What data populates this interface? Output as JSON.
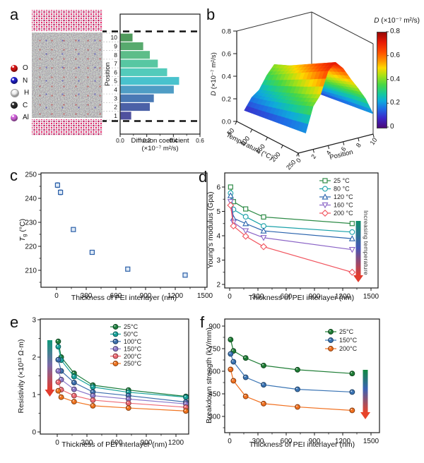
{
  "figure": {
    "panel_labels": {
      "a": "a",
      "b": "b",
      "c": "c",
      "d": "d",
      "e": "e",
      "f": "f"
    }
  },
  "panel_a": {
    "atom_legend": [
      {
        "element": "O",
        "color": "#d31414"
      },
      {
        "element": "N",
        "color": "#2020c8"
      },
      {
        "element": "H",
        "color": "#f2f2f2"
      },
      {
        "element": "C",
        "color": "#2e2e2e"
      },
      {
        "element": "Al",
        "color": "#cf62d8"
      }
    ]
  },
  "chart_data": [
    {
      "panel": "a",
      "type": "bar",
      "orientation": "horizontal",
      "xlabel": "Diffusion coefficient",
      "xlabel_units": "(×10⁻⁷ m²/s)",
      "ylabel": "Position",
      "categories": [
        1,
        2,
        3,
        4,
        5,
        6,
        7,
        8,
        9,
        10
      ],
      "values": [
        0.08,
        0.22,
        0.25,
        0.4,
        0.44,
        0.35,
        0.28,
        0.22,
        0.17,
        0.09
      ],
      "bar_colors": [
        "#50519e",
        "#4b61a7",
        "#4a79b5",
        "#4f9dc5",
        "#49c2cd",
        "#53cbbb",
        "#57c7a2",
        "#5dbd89",
        "#58aa6e",
        "#4f9a5c"
      ],
      "xlim": [
        0,
        0.6
      ],
      "x_ticks": [
        0,
        0.2,
        0.4,
        0.6
      ],
      "x_minor_ticks": [
        0.1,
        0.3,
        0.5
      ]
    },
    {
      "panel": "b",
      "type": "surface",
      "zlabel_d": "D",
      "zlabel_units": " (×10⁻⁷ m²/s)",
      "xlabel": "Temperature (°C)",
      "ylabel": "Position",
      "colorbar_title_d": "D",
      "colorbar_title_units": " (×10⁻⁷ m²/s)",
      "colorbar_ticks": [
        0,
        0.2,
        0.4,
        0.6,
        0.8
      ],
      "x_ticks": [
        50,
        100,
        150,
        200,
        250
      ],
      "y_ticks": [
        0,
        2,
        4,
        6,
        8,
        10
      ],
      "z_ticks": [
        0,
        0.2,
        0.4,
        0.6,
        0.8
      ],
      "zlim": [
        0,
        0.8
      ],
      "temperatures": [
        50,
        100,
        150,
        200,
        250
      ],
      "positions": [
        1,
        2,
        3,
        4,
        5,
        6,
        7,
        8,
        9,
        10
      ],
      "surface": [
        [
          0.08,
          0.18,
          0.23,
          0.34,
          0.42,
          0.38,
          0.3,
          0.24,
          0.18,
          0.1
        ],
        [
          0.1,
          0.22,
          0.28,
          0.42,
          0.48,
          0.44,
          0.36,
          0.29,
          0.22,
          0.12
        ],
        [
          0.12,
          0.27,
          0.34,
          0.5,
          0.56,
          0.51,
          0.42,
          0.34,
          0.26,
          0.14
        ],
        [
          0.14,
          0.32,
          0.4,
          0.58,
          0.64,
          0.58,
          0.48,
          0.39,
          0.3,
          0.16
        ],
        [
          0.16,
          0.38,
          0.47,
          0.66,
          0.72,
          0.65,
          0.54,
          0.44,
          0.33,
          0.18
        ]
      ]
    },
    {
      "panel": "c",
      "type": "scatter",
      "xlabel": "Thickness of PEI interlayer (nm)",
      "ylabel_prefix": "T",
      "ylabel_sub": "g",
      "ylabel_suffix": " (°C)",
      "x": [
        10,
        40,
        170,
        360,
        720,
        1300
      ],
      "y": [
        245.5,
        242.5,
        227.0,
        217.5,
        210.5,
        208.0
      ],
      "y_error": [
        1.0,
        1.0,
        0.8,
        0.8,
        0.7,
        0.6
      ],
      "marker": "square",
      "marker_fill": "open",
      "color": "#2b5fa8",
      "marker_face": "#dfeaf6",
      "x_ticks": [
        0,
        300,
        600,
        900,
        1200,
        1500
      ],
      "y_ticks": [
        210,
        220,
        230,
        240,
        250
      ]
    },
    {
      "panel": "d",
      "type": "line",
      "xlabel": "Thickness of PEI interlayer (nm)",
      "ylabel": "Young's modulus (Gpa)",
      "annotation": "Increasing temperature",
      "x": [
        10,
        40,
        170,
        360,
        1300
      ],
      "series": [
        {
          "name": "25 °C",
          "marker": "square",
          "color": "#2e8b47",
          "values": [
            6.0,
            5.4,
            5.1,
            4.77,
            4.5
          ]
        },
        {
          "name": "80 °C",
          "marker": "circle",
          "color": "#17a0a8",
          "values": [
            5.75,
            5.08,
            4.78,
            4.4,
            4.15
          ]
        },
        {
          "name": "120 °C",
          "marker": "triangle-up",
          "color": "#2a63ad",
          "values": [
            5.65,
            4.72,
            4.5,
            4.2,
            3.88
          ]
        },
        {
          "name": "160 °C",
          "marker": "triangle-down",
          "color": "#8a63c6",
          "values": [
            5.4,
            4.55,
            4.2,
            3.92,
            3.43
          ]
        },
        {
          "name": "200 °C",
          "marker": "diamond",
          "color": "#f1545e",
          "values": [
            5.25,
            4.4,
            3.98,
            3.55,
            2.5
          ]
        }
      ],
      "marker_fill": "open",
      "x_ticks": [
        0,
        300,
        600,
        900,
        1200,
        1500
      ],
      "y_ticks": [
        2,
        3,
        4,
        5,
        6
      ]
    },
    {
      "panel": "e",
      "type": "line",
      "xlabel": "Thickness of PEI interlayer (nm)",
      "ylabel": "Resistivity (×10¹³ Ω·m)",
      "x": [
        10,
        40,
        170,
        360,
        720,
        1300
      ],
      "series": [
        {
          "name": "25°C",
          "marker": "circle",
          "color": "#1e8040",
          "values": [
            2.42,
            2.0,
            1.57,
            1.25,
            1.12,
            0.95
          ]
        },
        {
          "name": "50°C",
          "marker": "circle",
          "color": "#18a39b",
          "values": [
            2.28,
            1.92,
            1.48,
            1.2,
            1.06,
            0.93
          ]
        },
        {
          "name": "100°C",
          "marker": "circle",
          "color": "#3c6fae",
          "values": [
            1.93,
            1.63,
            1.32,
            1.07,
            0.97,
            0.8
          ]
        },
        {
          "name": "150°C",
          "marker": "circle",
          "color": "#8c79cb",
          "values": [
            1.63,
            1.4,
            1.14,
            0.97,
            0.88,
            0.75
          ]
        },
        {
          "name": "200°C",
          "marker": "circle",
          "color": "#ef6a74",
          "values": [
            1.33,
            1.13,
            0.97,
            0.85,
            0.77,
            0.66
          ]
        },
        {
          "name": "250°C",
          "marker": "circle",
          "color": "#f1741f",
          "values": [
            1.1,
            0.93,
            0.81,
            0.7,
            0.64,
            0.56
          ]
        }
      ],
      "marker_fill": "solid",
      "x_ticks": [
        0,
        300,
        600,
        900,
        1200
      ],
      "y_ticks": [
        0,
        1,
        2,
        3
      ]
    },
    {
      "panel": "f",
      "type": "line",
      "xlabel": "Thickness of PEI interlayer (nm)",
      "ylabel": "Breakdown strength (kV/mm)",
      "x": [
        10,
        40,
        170,
        360,
        720,
        1300
      ],
      "series": [
        {
          "name": "25°C",
          "marker": "circle",
          "color": "#1e7d35",
          "values": [
            810,
            735,
            688,
            638,
            610,
            585
          ]
        },
        {
          "name": "150°C",
          "marker": "circle",
          "color": "#3a74b4",
          "values": [
            715,
            663,
            560,
            510,
            480,
            462
          ]
        },
        {
          "name": "200°C",
          "marker": "circle",
          "color": "#f1701f",
          "values": [
            612,
            537,
            433,
            385,
            363,
            340
          ]
        }
      ],
      "marker_fill": "solid",
      "x_ticks": [
        0,
        300,
        600,
        900,
        1200,
        1500
      ],
      "y_ticks": [
        300,
        450,
        600,
        750,
        900
      ]
    }
  ]
}
